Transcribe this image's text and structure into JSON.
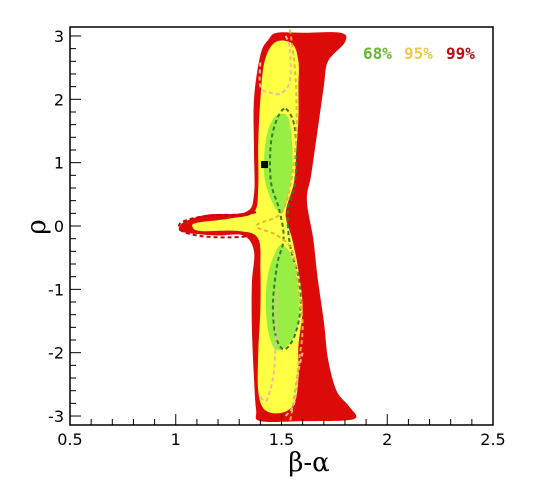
{
  "chart_data": {
    "type": "contour",
    "xlabel": "β-α",
    "ylabel": "ρ",
    "xlim": [
      0.5,
      2.5
    ],
    "ylim": [
      -3.14159,
      3.14159
    ],
    "x_ticks": [
      0.5,
      1,
      1.5,
      2,
      2.5
    ],
    "x_tick_labels": [
      "0.5",
      "1",
      "1.5",
      "2",
      "2.5"
    ],
    "y_ticks": [
      -3,
      -2,
      -1,
      0,
      1,
      2,
      3
    ],
    "y_tick_labels": [
      "-3",
      "-2",
      "-1",
      "0",
      "1",
      "2",
      "3"
    ],
    "legend": [
      {
        "label": "68%",
        "color": "#66b82f"
      },
      {
        "label": "95%",
        "color": "#f0c84a"
      },
      {
        "label": "99%",
        "color": "#b81010"
      }
    ],
    "legend_position": "top-right",
    "best_fit_point": {
      "x": 1.42,
      "y": 0.97
    },
    "regions": [
      {
        "level": "99%",
        "fill": "#dd0a0a",
        "outline": [
          [
            1.48,
            3.05
          ],
          [
            1.6,
            3.05
          ],
          [
            1.78,
            3.05
          ],
          [
            1.8,
            2.9
          ],
          [
            1.72,
            2.6
          ],
          [
            1.7,
            2.2
          ],
          [
            1.67,
            1.5
          ],
          [
            1.64,
            0.8
          ],
          [
            1.62,
            0.4
          ],
          [
            1.65,
            -0.2
          ],
          [
            1.67,
            -0.8
          ],
          [
            1.7,
            -1.5
          ],
          [
            1.72,
            -2.1
          ],
          [
            1.76,
            -2.6
          ],
          [
            1.82,
            -2.85
          ],
          [
            1.84,
            -3.05
          ],
          [
            1.6,
            -3.08
          ],
          [
            1.4,
            -3.08
          ],
          [
            1.38,
            -2.9
          ],
          [
            1.37,
            -2.4
          ],
          [
            1.36,
            -1.6
          ],
          [
            1.36,
            -0.9
          ],
          [
            1.37,
            -0.4
          ],
          [
            1.32,
            -0.15
          ],
          [
            1.2,
            -0.15
          ],
          [
            1.08,
            -0.12
          ],
          [
            1.02,
            -0.08
          ],
          [
            1.02,
            0.0
          ],
          [
            1.05,
            0.08
          ],
          [
            1.15,
            0.18
          ],
          [
            1.33,
            0.22
          ],
          [
            1.37,
            0.5
          ],
          [
            1.37,
            1.2
          ],
          [
            1.37,
            2.0
          ],
          [
            1.4,
            2.7
          ],
          [
            1.44,
            2.95
          ]
        ]
      },
      {
        "level": "95%",
        "fill": "#ffff44",
        "outline": [
          [
            1.47,
            2.9
          ],
          [
            1.55,
            2.88
          ],
          [
            1.58,
            2.6
          ],
          [
            1.58,
            2.2
          ],
          [
            1.58,
            1.7
          ],
          [
            1.57,
            1.2
          ],
          [
            1.56,
            0.7
          ],
          [
            1.52,
            0.2
          ],
          [
            1.55,
            -0.2
          ],
          [
            1.58,
            -0.7
          ],
          [
            1.6,
            -1.3
          ],
          [
            1.58,
            -1.9
          ],
          [
            1.58,
            -2.4
          ],
          [
            1.56,
            -2.8
          ],
          [
            1.5,
            -2.95
          ],
          [
            1.42,
            -2.9
          ],
          [
            1.39,
            -2.6
          ],
          [
            1.39,
            -2.0
          ],
          [
            1.4,
            -1.3
          ],
          [
            1.4,
            -0.7
          ],
          [
            1.39,
            -0.2
          ],
          [
            1.3,
            -0.08
          ],
          [
            1.12,
            -0.08
          ],
          [
            1.08,
            -0.02
          ],
          [
            1.1,
            0.05
          ],
          [
            1.26,
            0.12
          ],
          [
            1.37,
            0.22
          ],
          [
            1.39,
            0.6
          ],
          [
            1.39,
            1.3
          ],
          [
            1.4,
            2.0
          ],
          [
            1.42,
            2.6
          ]
        ]
      },
      {
        "level": "68%",
        "fill": "#99ee44",
        "outline": [
          [
            1.48,
            1.75
          ],
          [
            1.53,
            1.72
          ],
          [
            1.55,
            1.3
          ],
          [
            1.55,
            0.9
          ],
          [
            1.53,
            0.45
          ],
          [
            1.5,
            0.2
          ],
          [
            1.46,
            0.35
          ],
          [
            1.42,
            0.75
          ],
          [
            1.42,
            1.2
          ],
          [
            1.44,
            1.55
          ]
        ]
      },
      {
        "level": "68%",
        "fill": "#99ee44",
        "outline": [
          [
            1.5,
            -0.3
          ],
          [
            1.55,
            -0.5
          ],
          [
            1.58,
            -1.0
          ],
          [
            1.58,
            -1.5
          ],
          [
            1.55,
            -1.8
          ],
          [
            1.5,
            -1.95
          ],
          [
            1.46,
            -1.9
          ],
          [
            1.43,
            -1.5
          ],
          [
            1.43,
            -0.9
          ],
          [
            1.46,
            -0.5
          ]
        ]
      }
    ],
    "dashed_contours": [
      {
        "color": "#3a7a32",
        "points": [
          [
            1.52,
            1.85
          ],
          [
            1.56,
            1.6
          ],
          [
            1.57,
            1.1
          ],
          [
            1.56,
            0.6
          ],
          [
            1.53,
            0.25
          ],
          [
            1.54,
            -0.3
          ],
          [
            1.58,
            -0.8
          ],
          [
            1.59,
            -1.3
          ],
          [
            1.56,
            -1.75
          ],
          [
            1.51,
            -1.95
          ],
          [
            1.47,
            -1.7
          ],
          [
            1.46,
            -1.2
          ],
          [
            1.48,
            -0.6
          ],
          [
            1.51,
            -0.2
          ],
          [
            1.49,
            0.25
          ],
          [
            1.45,
            0.7
          ],
          [
            1.45,
            1.3
          ],
          [
            1.48,
            1.7
          ],
          [
            1.52,
            1.85
          ]
        ]
      },
      {
        "color": "#eeb8a0",
        "points": [
          [
            1.52,
            3.0
          ],
          [
            1.54,
            2.8
          ],
          [
            1.54,
            2.3
          ],
          [
            1.5,
            2.1
          ],
          [
            1.45,
            2.1
          ],
          [
            1.4,
            2.2
          ],
          [
            1.4,
            2.6
          ]
        ]
      },
      {
        "color": "#eeb8a0",
        "points": [
          [
            1.4,
            -2.7
          ],
          [
            1.43,
            -2.75
          ],
          [
            1.46,
            -2.4
          ],
          [
            1.47,
            -2.0
          ],
          [
            1.48,
            -1.0
          ]
        ]
      },
      {
        "color": "#eeb8a0",
        "points": [
          [
            1.52,
            -3.0
          ],
          [
            1.56,
            -2.8
          ],
          [
            1.58,
            -2.3
          ],
          [
            1.6,
            -2.0
          ]
        ]
      },
      {
        "color": "#e8b830",
        "points": [
          [
            1.54,
            3.1
          ],
          [
            1.56,
            2.6
          ],
          [
            1.57,
            2.1
          ],
          [
            1.57,
            1.4
          ],
          [
            1.55,
            0.8
          ],
          [
            1.52,
            0.35
          ],
          [
            1.48,
            0.15
          ],
          [
            1.38,
            0.0
          ],
          [
            1.48,
            -0.15
          ],
          [
            1.55,
            -0.4
          ],
          [
            1.58,
            -1.0
          ],
          [
            1.6,
            -1.6
          ],
          [
            1.58,
            -2.2
          ],
          [
            1.56,
            -2.7
          ],
          [
            1.54,
            -3.1
          ]
        ]
      },
      {
        "color": "#bb0a0a",
        "points": [
          [
            1.38,
            0.22
          ],
          [
            1.32,
            0.18
          ],
          [
            1.18,
            0.17
          ],
          [
            1.08,
            0.12
          ],
          [
            1.02,
            0.04
          ],
          [
            1.03,
            -0.08
          ],
          [
            1.12,
            -0.16
          ],
          [
            1.25,
            -0.18
          ],
          [
            1.36,
            -0.16
          ]
        ]
      }
    ]
  }
}
